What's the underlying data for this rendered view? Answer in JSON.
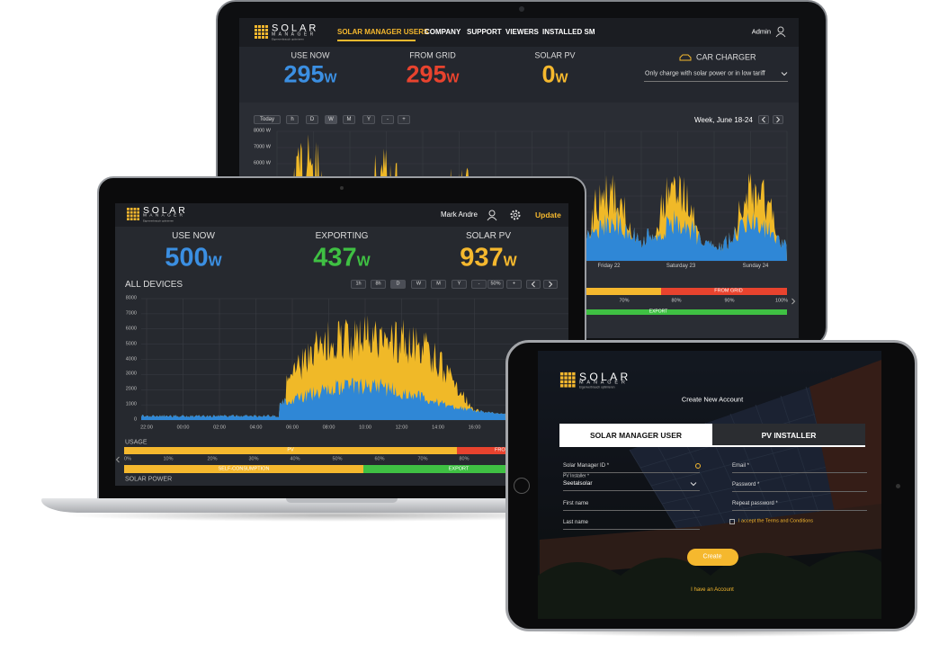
{
  "monitor": {
    "logo": {
      "title": "SOLAR",
      "subtitle": "MANAGER",
      "tagline": "Eigenverbrauch optimieren"
    },
    "nav": [
      "SOLAR MANAGER USERS",
      "COMPANY",
      "SUPPORT",
      "VIEWERS",
      "INSTALLED SM"
    ],
    "user": "Admin",
    "stats": [
      {
        "label": "USE NOW",
        "value": 295,
        "unit": "W"
      },
      {
        "label": "FROM GRID",
        "value": 295,
        "unit": "W"
      },
      {
        "label": "SOLAR PV",
        "value": 0,
        "unit": "W"
      }
    ],
    "car_charger": {
      "label": "CAR CHARGER",
      "option": "Only charge with solar power or in low tariff"
    },
    "chart": {
      "buttons": [
        "Today",
        "h",
        "D",
        "W",
        "M",
        "Y",
        "-",
        "+"
      ],
      "period": "Week, June 18-24",
      "yticks": [
        "8000 W",
        "7000 W",
        "6000 W"
      ],
      "xlabels": [
        "Friday 22",
        "Saturday 23",
        "Sunday 24"
      ],
      "bars": {
        "grid": "FROM GRID",
        "percents": [
          "70%",
          "80%",
          "90%",
          "100%"
        ],
        "export": "EXPORT"
      }
    }
  },
  "laptop": {
    "logo": {
      "title": "SOLAR",
      "subtitle": "MANAGER",
      "tagline": "Eigenverbrauch optimieren"
    },
    "user": "Mark Andre",
    "update": "Update",
    "stats": [
      {
        "label": "USE NOW",
        "value": 500,
        "unit": "W"
      },
      {
        "label": "EXPORTING",
        "value": 437,
        "unit": "W"
      },
      {
        "label": "SOLAR PV",
        "value": 937,
        "unit": "W"
      }
    ],
    "chart": {
      "title": "ALL DEVICES",
      "buttons": [
        "1h",
        "8h",
        "D",
        "W",
        "M",
        "Y",
        "-",
        "50%",
        "+"
      ],
      "yticks": [
        8000,
        7000,
        6000,
        5000,
        4000,
        3000,
        2000,
        1000,
        0
      ],
      "xticks": [
        "22:00",
        "00:00",
        "02:00",
        "04:00",
        "06:00",
        "08:00",
        "10:00",
        "12:00",
        "14:00",
        "16:00"
      ]
    },
    "usage": {
      "label": "USAGE",
      "pv": "PV",
      "grid": "FRO",
      "percents": [
        "0%",
        "10%",
        "20%",
        "30%",
        "40%",
        "50%",
        "60%",
        "70%",
        "80%"
      ],
      "self": "SELF-CONSUMPTION",
      "export": "EXPORT",
      "solar": "SOLAR POWER"
    }
  },
  "tablet": {
    "logo": {
      "title": "SOLAR",
      "subtitle": "MANAGER",
      "tagline": "Eigenverbrauch optimieren"
    },
    "heading": "Create New Account",
    "tabs": [
      "SOLAR MANAGER USER",
      "PV INSTALLER"
    ],
    "fields": {
      "id": "Solar Manager ID *",
      "installer": "PV Installer *",
      "installer_value": "Seetalsolar",
      "first": "First name",
      "last": "Last name",
      "email": "Email *",
      "password": "Password *",
      "repeat": "Repeat password *"
    },
    "terms": "I accept the Terms and Conditions",
    "create": "Create",
    "login": "I have an Account"
  }
}
